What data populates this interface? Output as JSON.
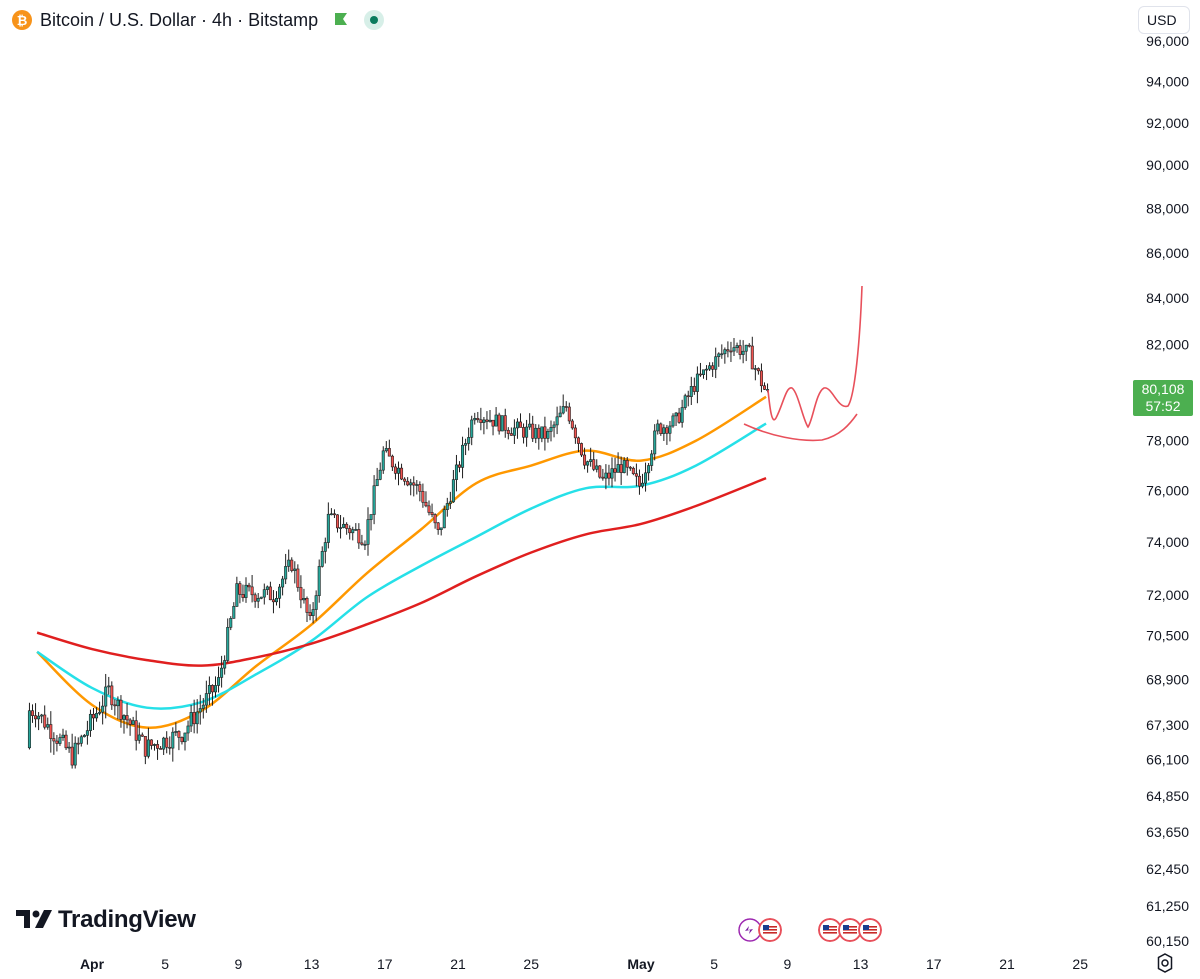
{
  "header": {
    "title": "Bitcoin / U.S. Dollar · 4h · Bitstamp",
    "coin_symbol": "₿",
    "flag_color": "#4caf50",
    "status_color": "#0a7b5d"
  },
  "currency": "USD",
  "price_badge": {
    "price": "80,108",
    "countdown": "57:52",
    "color": "#4caf50"
  },
  "logo": {
    "text": "TradingView"
  },
  "chart_data": {
    "type": "candlestick",
    "timeframe": "4h",
    "y_axis": {
      "scale": "log",
      "range": [
        59900,
        96800
      ],
      "tick_labels": [
        "96,000",
        "94,000",
        "92,000",
        "90,000",
        "88,000",
        "86,000",
        "84,000",
        "82,000",
        "80,108",
        "78,000",
        "76,000",
        "74,000",
        "72,000",
        "70,500",
        "68,900",
        "67,300",
        "66,100",
        "64,850",
        "63,650",
        "62,450",
        "61,250",
        "60,150"
      ]
    },
    "x_axis": {
      "tick_labels": [
        "Apr",
        "5",
        "9",
        "13",
        "17",
        "21",
        "25",
        "May",
        "5",
        "9",
        "13",
        "17",
        "21",
        "25"
      ],
      "bold_labels": [
        "Apr",
        "May"
      ]
    },
    "candles_summary": {
      "start_price": 66500,
      "last_close": 80108,
      "waypoints": [
        {
          "date": "Mar 29",
          "price": 67800
        },
        {
          "date": "Mar 31",
          "price": 66200
        },
        {
          "date": "Apr 2",
          "price": 68500
        },
        {
          "date": "Apr 4",
          "price": 66500
        },
        {
          "date": "Apr 6",
          "price": 67000
        },
        {
          "date": "Apr 8",
          "price": 68800
        },
        {
          "date": "Apr 9",
          "price": 72100
        },
        {
          "date": "Apr 11",
          "price": 72000
        },
        {
          "date": "Apr 12",
          "price": 73200
        },
        {
          "date": "Apr 13",
          "price": 70900
        },
        {
          "date": "Apr 14",
          "price": 74900
        },
        {
          "date": "Apr 16",
          "price": 74200
        },
        {
          "date": "Apr 17",
          "price": 77500
        },
        {
          "date": "Apr 19",
          "price": 76000
        },
        {
          "date": "Apr 20",
          "price": 74300
        },
        {
          "date": "Apr 21",
          "price": 76700
        },
        {
          "date": "Apr 22",
          "price": 79200
        },
        {
          "date": "Apr 24",
          "price": 78500
        },
        {
          "date": "Apr 26",
          "price": 78200
        },
        {
          "date": "Apr 27",
          "price": 79400
        },
        {
          "date": "Apr 28",
          "price": 77300
        },
        {
          "date": "Apr 29",
          "price": 76400
        },
        {
          "date": "Apr 30",
          "price": 77000
        },
        {
          "date": "May 1",
          "price": 76200
        },
        {
          "date": "May 2",
          "price": 78500
        },
        {
          "date": "May 3",
          "price": 78800
        },
        {
          "date": "May 4",
          "price": 80300
        },
        {
          "date": "May 5",
          "price": 81200
        },
        {
          "date": "May 6",
          "price": 82000
        },
        {
          "date": "May 7",
          "price": 81600
        },
        {
          "date": "May 7 20:00",
          "price": 80108
        }
      ]
    },
    "moving_averages": [
      {
        "color": "#ff9800",
        "points": [
          {
            "date": "Mar 29",
            "value": 69900
          },
          {
            "date": "Apr 1",
            "value": 68000
          },
          {
            "date": "Apr 4",
            "value": 67200
          },
          {
            "date": "Apr 7",
            "value": 67800
          },
          {
            "date": "Apr 10",
            "value": 69400
          },
          {
            "date": "Apr 13",
            "value": 70900
          },
          {
            "date": "Apr 16",
            "value": 72800
          },
          {
            "date": "Apr 19",
            "value": 74500
          },
          {
            "date": "Apr 22",
            "value": 76300
          },
          {
            "date": "Apr 25",
            "value": 77000
          },
          {
            "date": "Apr 28",
            "value": 77600
          },
          {
            "date": "May 1",
            "value": 77200
          },
          {
            "date": "May 4",
            "value": 78000
          },
          {
            "date": "May 7 20:00",
            "value": 79800
          }
        ]
      },
      {
        "color": "#26e0e8",
        "points": [
          {
            "date": "Mar 29",
            "value": 69900
          },
          {
            "date": "Apr 1",
            "value": 68600
          },
          {
            "date": "Apr 4",
            "value": 67900
          },
          {
            "date": "Apr 7",
            "value": 68100
          },
          {
            "date": "Apr 10",
            "value": 69100
          },
          {
            "date": "Apr 13",
            "value": 70300
          },
          {
            "date": "Apr 16",
            "value": 71900
          },
          {
            "date": "Apr 19",
            "value": 73100
          },
          {
            "date": "Apr 22",
            "value": 74200
          },
          {
            "date": "Apr 25",
            "value": 75300
          },
          {
            "date": "Apr 28",
            "value": 76100
          },
          {
            "date": "May 1",
            "value": 76200
          },
          {
            "date": "May 4",
            "value": 77000
          },
          {
            "date": "May 7 20:00",
            "value": 78700
          }
        ]
      },
      {
        "color": "#e01f1f",
        "points": [
          {
            "date": "Mar 29",
            "value": 70600
          },
          {
            "date": "Apr 1",
            "value": 70000
          },
          {
            "date": "Apr 4",
            "value": 69600
          },
          {
            "date": "Apr 7",
            "value": 69400
          },
          {
            "date": "Apr 10",
            "value": 69700
          },
          {
            "date": "Apr 13",
            "value": 70200
          },
          {
            "date": "Apr 16",
            "value": 70900
          },
          {
            "date": "Apr 19",
            "value": 71700
          },
          {
            "date": "Apr 22",
            "value": 72700
          },
          {
            "date": "Apr 25",
            "value": 73600
          },
          {
            "date": "Apr 28",
            "value": 74300
          },
          {
            "date": "May 1",
            "value": 74700
          },
          {
            "date": "May 4",
            "value": 75400
          },
          {
            "date": "May 7 20:00",
            "value": 76500
          }
        ]
      }
    ],
    "annotations": [
      {
        "type": "freehand",
        "color": "#e8505b",
        "description": "zigzag projection then sharp rise"
      },
      {
        "type": "freehand-arc",
        "color": "#e8505b",
        "description": "support bowl"
      }
    ],
    "grid": false,
    "legend": "none"
  },
  "events": {
    "group1_count": 2,
    "group2_count": 3
  }
}
